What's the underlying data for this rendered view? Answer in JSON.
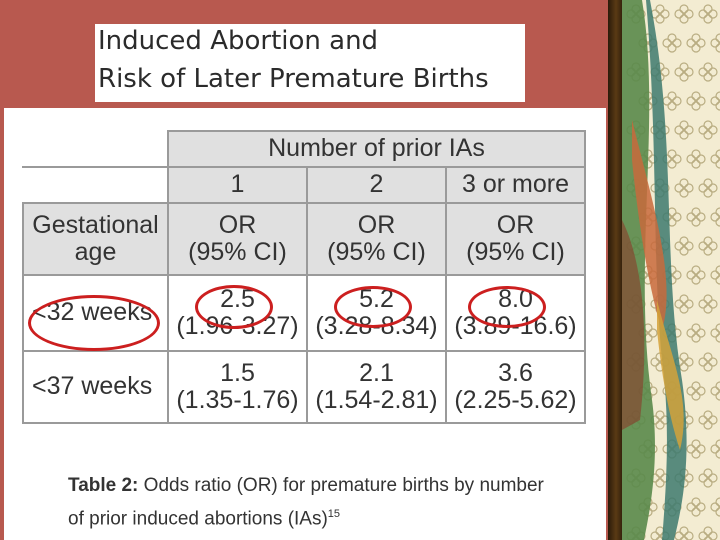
{
  "title": {
    "line1": "Induced Abortion and",
    "line2": "Risk of Later Premature Births"
  },
  "table": {
    "group_header": "Number of prior IAs",
    "col_numbers": [
      "1",
      "2",
      "3 or more"
    ],
    "row_header_label_line1": "Gestational",
    "row_header_label_line2": "age",
    "stat_label_line1": "OR",
    "stat_label_line2": "(95% CI)",
    "rows": [
      {
        "label": "<32 weeks",
        "cells": [
          {
            "or": "2.5",
            "ci": "(1.96-3.27)"
          },
          {
            "or": "5.2",
            "ci": "(3.28-8.34)"
          },
          {
            "or": "8.0",
            "ci": "(3.89-16.6)"
          }
        ]
      },
      {
        "label": "<37 weeks",
        "cells": [
          {
            "or": "1.5",
            "ci": "(1.35-1.76)"
          },
          {
            "or": "2.1",
            "ci": "(1.54-2.81)"
          },
          {
            "or": "3.6",
            "ci": "(2.25-5.62)"
          }
        ]
      }
    ]
  },
  "caption": {
    "bold": "Table 2:",
    "text_line1": " Odds ratio (OR) for premature births by number",
    "text_line2": "of prior induced abortions (IAs)",
    "superscript": "15"
  },
  "colors": {
    "slide_background": "#b8594f",
    "highlight_circle": "#cc1f1f",
    "cell_grey": "#e0e0e0",
    "pattern_bg": "#f3ecd2",
    "pattern_flower": "#c9bf98"
  }
}
